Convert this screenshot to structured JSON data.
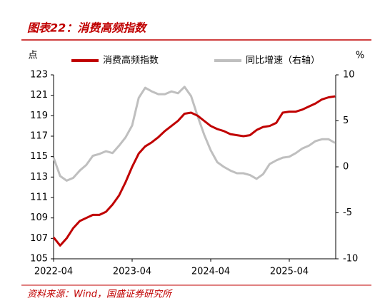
{
  "chart_data": {
    "type": "line",
    "title": "图表22：消费高频指数",
    "ylabel": "点",
    "y2label": "%",
    "source": "资料来源：Wind，国盛证券研究所",
    "categories": [
      "2022-04",
      null,
      null,
      null,
      null,
      null,
      null,
      null,
      null,
      null,
      null,
      null,
      "2023-04",
      null,
      null,
      null,
      null,
      null,
      null,
      null,
      null,
      null,
      null,
      null,
      "2024-04",
      null,
      null,
      null,
      null,
      null,
      null,
      null,
      null,
      null,
      null,
      null,
      "2025-04",
      null,
      null,
      null,
      null,
      null,
      null,
      null
    ],
    "series": [
      {
        "name": "消费高频指数",
        "color": "#c00000",
        "axis": "y",
        "values": [
          107.1,
          106.3,
          107.0,
          108.0,
          108.7,
          109.0,
          109.3,
          109.3,
          109.6,
          110.3,
          111.2,
          112.5,
          114.0,
          115.3,
          116.0,
          116.4,
          116.9,
          117.5,
          118.0,
          118.5,
          119.2,
          119.3,
          119.0,
          118.5,
          118.0,
          117.7,
          117.5,
          117.2,
          117.1,
          117.0,
          117.1,
          117.6,
          117.9,
          118.0,
          118.3,
          119.3,
          119.4,
          119.4,
          119.6,
          119.9,
          120.2,
          120.6,
          120.8,
          120.9
        ]
      },
      {
        "name": "同比增速（右轴）",
        "color": "#bfbfbf",
        "axis": "y2",
        "values": [
          1.0,
          -1.0,
          -1.5,
          -1.2,
          -0.4,
          0.2,
          1.2,
          1.4,
          1.7,
          1.5,
          2.3,
          3.2,
          4.5,
          7.5,
          8.6,
          8.2,
          7.9,
          7.9,
          8.2,
          8.0,
          8.7,
          7.7,
          5.5,
          3.5,
          1.8,
          0.5,
          0.0,
          -0.4,
          -0.7,
          -0.7,
          -0.9,
          -1.3,
          -0.8,
          0.3,
          0.7,
          1.0,
          1.1,
          1.5,
          2.0,
          2.3,
          2.8,
          3.0,
          3.0,
          2.6
        ]
      }
    ],
    "ylim": [
      105,
      123
    ],
    "yticks": [
      105,
      107,
      109,
      111,
      113,
      115,
      117,
      119,
      121,
      123
    ],
    "y2lim": [
      -10,
      10
    ],
    "y2ticks": [
      -10,
      -5,
      0,
      5,
      10
    ],
    "legend": "top",
    "grid": false
  }
}
